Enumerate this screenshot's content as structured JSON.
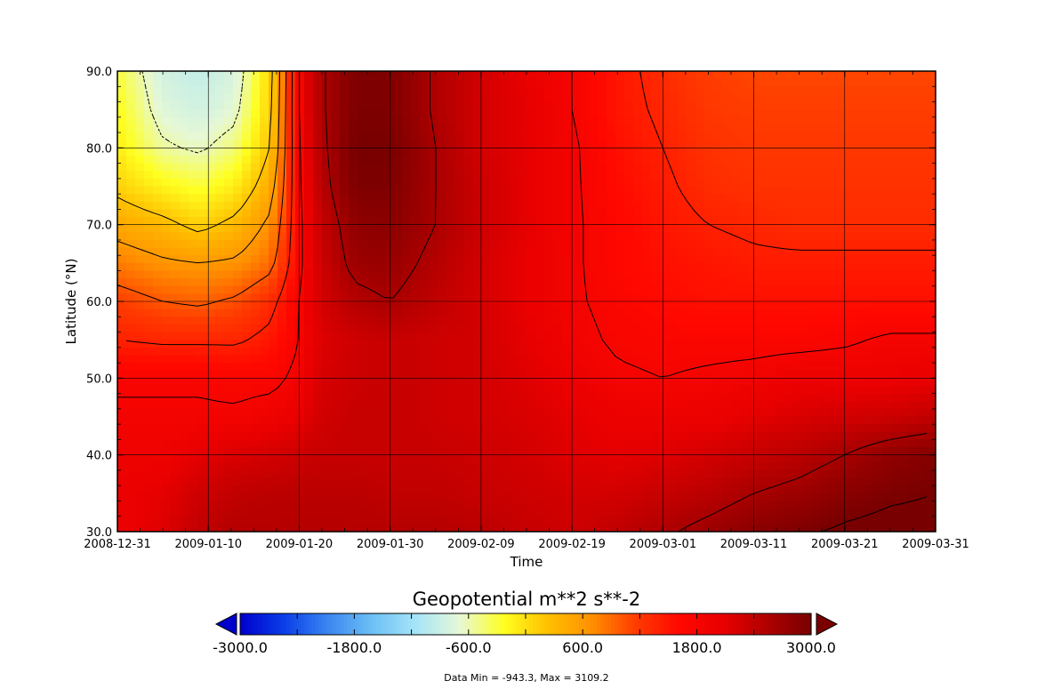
{
  "chart_data": {
    "type": "heatmap",
    "title": "",
    "xlabel": "Time",
    "ylabel": "Latitude (°N)",
    "x_ticks": [
      "2008-12-31",
      "2009-01-10",
      "2009-01-20",
      "2009-01-30",
      "2009-02-09",
      "2009-02-19",
      "2009-03-01",
      "2009-03-11",
      "2009-03-21",
      "2009-03-31"
    ],
    "x_range": [
      "2008-12-31",
      "2009-03-31"
    ],
    "y_ticks": [
      "30.0",
      "40.0",
      "50.0",
      "60.0",
      "70.0",
      "80.0",
      "90.0"
    ],
    "ylim": [
      30,
      90
    ],
    "grid": true,
    "field_grid": {
      "times": [
        "2008-12-31",
        "2009-01-05",
        "2009-01-09",
        "2009-01-13",
        "2009-01-17",
        "2009-01-20",
        "2009-01-22",
        "2009-01-26",
        "2009-01-30",
        "2009-02-04",
        "2009-02-09",
        "2009-02-14",
        "2009-02-19",
        "2009-02-24",
        "2009-03-01",
        "2009-03-06",
        "2009-03-11",
        "2009-03-16",
        "2009-03-21",
        "2009-03-26",
        "2009-03-31"
      ],
      "latitudes": [
        30,
        35,
        40,
        45,
        50,
        55,
        60,
        65,
        70,
        75,
        80,
        85,
        90
      ],
      "values": [
        [
          2000,
          2150,
          2400,
          2500,
          2500,
          2500,
          2500,
          2500,
          2500,
          2500,
          2450,
          2350,
          2300,
          2400,
          2550,
          2700,
          2850,
          2950,
          3050,
          3100,
          3100
        ],
        [
          2000,
          2100,
          2300,
          2400,
          2450,
          2450,
          2450,
          2450,
          2400,
          2400,
          2350,
          2300,
          2250,
          2250,
          2350,
          2450,
          2600,
          2700,
          2850,
          2950,
          3000
        ],
        [
          1950,
          1950,
          2100,
          2200,
          2250,
          2300,
          2350,
          2350,
          2350,
          2350,
          2300,
          2250,
          2150,
          2100,
          2150,
          2250,
          2350,
          2450,
          2600,
          2800,
          2900
        ],
        [
          1850,
          1850,
          1850,
          1850,
          1950,
          2050,
          2250,
          2350,
          2350,
          2300,
          2250,
          2200,
          2100,
          2000,
          2000,
          2000,
          2100,
          2200,
          2250,
          2300,
          2400
        ],
        [
          1750,
          1750,
          1750,
          1700,
          1700,
          1900,
          2200,
          2300,
          2350,
          2300,
          2250,
          2150,
          2000,
          1850,
          1800,
          1850,
          1900,
          2000,
          2000,
          2000,
          2050
        ],
        [
          1400,
          1350,
          1350,
          1350,
          1500,
          1800,
          2150,
          2300,
          2350,
          2300,
          2250,
          2100,
          1900,
          1750,
          1700,
          1700,
          1700,
          1700,
          1750,
          1850,
          1850
        ],
        [
          1150,
          1000,
          950,
          1050,
          1300,
          1800,
          2200,
          2500,
          2600,
          2400,
          2250,
          2050,
          1850,
          1700,
          1600,
          1550,
          1550,
          1550,
          1550,
          1550,
          1550
        ],
        [
          800,
          650,
          600,
          650,
          900,
          1700,
          2250,
          2700,
          2750,
          2500,
          2250,
          2050,
          1850,
          1650,
          1550,
          1500,
          1450,
          1450,
          1450,
          1450,
          1450
        ],
        [
          450,
          300,
          100,
          300,
          700,
          1700,
          2300,
          2800,
          2850,
          2600,
          2300,
          2100,
          1850,
          1650,
          1500,
          1400,
          1350,
          1300,
          1300,
          1300,
          1300
        ],
        [
          100,
          -150,
          -300,
          -100,
          450,
          1750,
          2400,
          2950,
          2950,
          2600,
          2300,
          2100,
          1850,
          1600,
          1450,
          1300,
          1250,
          1250,
          1250,
          1250,
          1250
        ],
        [
          -100,
          -550,
          -650,
          -450,
          250,
          1800,
          2450,
          3000,
          3000,
          2600,
          2250,
          2100,
          1850,
          1550,
          1400,
          1250,
          1200,
          1200,
          1200,
          1200,
          1200
        ],
        [
          -200,
          -750,
          -850,
          -700,
          150,
          1850,
          2500,
          2950,
          2950,
          2550,
          2250,
          2100,
          1800,
          1500,
          1350,
          1200,
          1150,
          1150,
          1150,
          1150,
          1150
        ],
        [
          -300,
          -850,
          -943.3,
          -800,
          100,
          1850,
          2500,
          2950,
          2950,
          2550,
          2250,
          2050,
          1800,
          1500,
          1300,
          1150,
          1100,
          1100,
          1100,
          1100,
          1100
        ]
      ]
    },
    "contour_levels": [
      -600,
      200,
      600,
      1000,
      1400,
      1800,
      2600,
      3000
    ],
    "colorbar": {
      "title": "Geopotential m**2 s**-2",
      "range": [
        -3000,
        3000
      ],
      "labels": [
        "-3000.0",
        "-1800.0",
        "-600.0",
        "600.0",
        "1800.0",
        "3000.0"
      ],
      "extend": "both",
      "colormap": [
        "#0000cc",
        "#0a3ee8",
        "#3a86f0",
        "#6cc0f4",
        "#a6e4f8",
        "#e6f8d6",
        "#ffff20",
        "#ffc000",
        "#ff9000",
        "#ff3c00",
        "#ff0800",
        "#e80000",
        "#b00000",
        "#780000"
      ]
    },
    "footnote": "Data Min = -943.3, Max = 3109.2"
  }
}
